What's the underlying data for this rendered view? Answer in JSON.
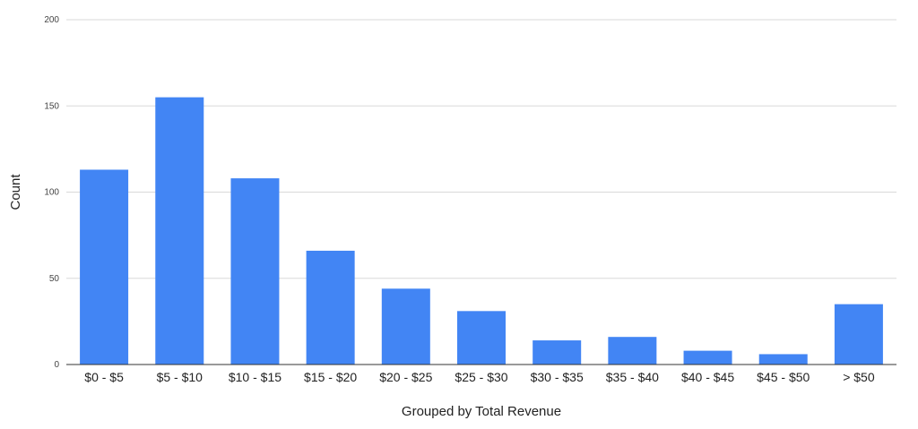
{
  "chart_data": {
    "type": "bar",
    "title": "",
    "xlabel": "Grouped by Total Revenue",
    "ylabel": "Count",
    "categories": [
      "$0  - $5",
      "$5 - $10",
      "$10 - $15",
      "$15 - $20",
      "$20 - $25",
      "$25 - $30",
      "$30 - $35",
      "$35 - $40",
      "$40 - $45",
      "$45 - $50",
      "> $50"
    ],
    "values": [
      113,
      155,
      108,
      66,
      44,
      31,
      14,
      16,
      8,
      6,
      35
    ],
    "ylim": [
      0,
      200
    ],
    "yticks": [
      "0",
      "50",
      "100",
      "150",
      "200"
    ],
    "grid": true,
    "legend": "none",
    "colors": {
      "bar": "#4285f4",
      "grid": "#d9d9d9",
      "baseline": "#333333"
    }
  }
}
